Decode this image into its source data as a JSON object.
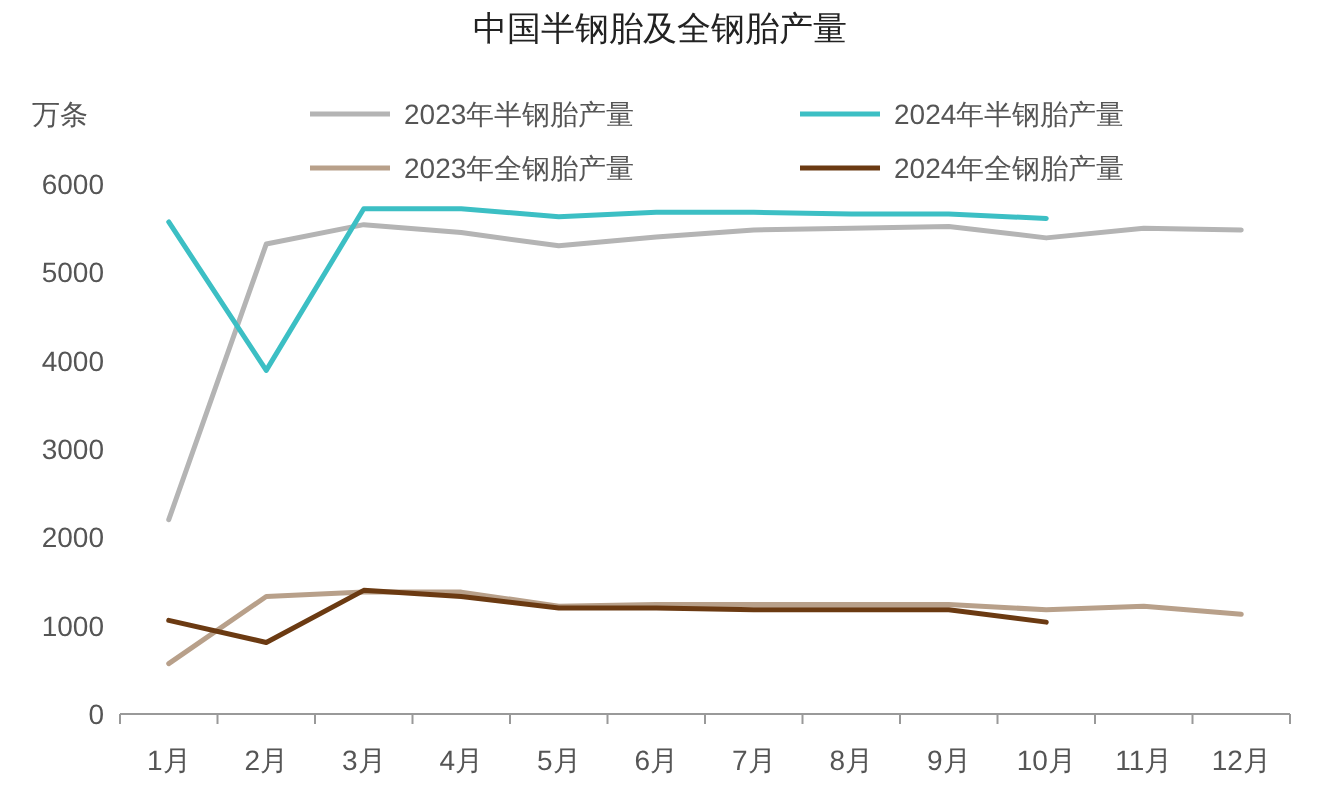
{
  "chart_data": {
    "type": "line",
    "title": "中国半钢胎及全钢胎产量",
    "ylabel": "万条",
    "legend": "top",
    "categories": [
      "1月",
      "2月",
      "3月",
      "4月",
      "5月",
      "6月",
      "7月",
      "8月",
      "9月",
      "10月",
      "11月",
      "12月"
    ],
    "ylim": [
      0,
      6000
    ],
    "yticks": [
      0,
      1000,
      2000,
      3000,
      4000,
      5000,
      6000
    ],
    "series": [
      {
        "name": "2023年半钢胎产量",
        "color": "#b4b4b4",
        "values": [
          2200,
          5320,
          5540,
          5450,
          5300,
          5400,
          5480,
          5500,
          5520,
          5390,
          5500,
          5480
        ]
      },
      {
        "name": "2024年半钢胎产量",
        "color": "#3cbfc4",
        "values": [
          5570,
          3890,
          5720,
          5720,
          5630,
          5680,
          5680,
          5660,
          5660,
          5610,
          null,
          null
        ]
      },
      {
        "name": "2023年全钢胎产量",
        "color": "#b8a08a",
        "values": [
          570,
          1330,
          1380,
          1380,
          1220,
          1240,
          1240,
          1240,
          1240,
          1180,
          1220,
          1130
        ]
      },
      {
        "name": "2024年全钢胎产量",
        "color": "#6b3a12",
        "values": [
          1060,
          810,
          1400,
          1330,
          1200,
          1200,
          1180,
          1180,
          1180,
          1040,
          null,
          null
        ]
      }
    ]
  }
}
